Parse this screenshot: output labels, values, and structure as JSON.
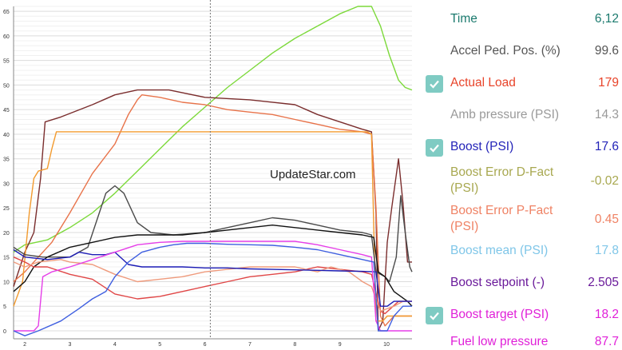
{
  "watermark": "UpdateStar.com",
  "chart_data": {
    "type": "line",
    "x_ticks": [
      2,
      3,
      4,
      5,
      6,
      7,
      8,
      9,
      10
    ],
    "y_ticks": [
      0,
      5,
      10,
      15,
      20,
      25,
      30,
      35,
      40,
      45,
      50,
      55,
      60,
      65
    ],
    "xlim": [
      1.75,
      10.6
    ],
    "ylim": [
      0,
      66
    ],
    "grid": true,
    "cursor_x": 6.12,
    "series": [
      {
        "color": "#7cd93a",
        "points": [
          [
            1.75,
            16
          ],
          [
            2,
            17.5
          ],
          [
            2.5,
            18.5
          ],
          [
            3,
            21
          ],
          [
            3.5,
            24
          ],
          [
            4,
            28
          ],
          [
            4.5,
            32.5
          ],
          [
            5,
            37
          ],
          [
            5.5,
            41.5
          ],
          [
            6,
            45.5
          ],
          [
            6.5,
            49.5
          ],
          [
            7,
            53
          ],
          [
            7.5,
            56.5
          ],
          [
            8,
            59.5
          ],
          [
            8.5,
            62
          ],
          [
            9,
            64.5
          ],
          [
            9.4,
            66
          ],
          [
            9.7,
            66
          ],
          [
            9.9,
            62
          ],
          [
            10.1,
            56
          ],
          [
            10.3,
            51
          ],
          [
            10.45,
            49.5
          ],
          [
            10.6,
            49
          ]
        ]
      },
      {
        "color": "#7a2d2d",
        "points": [
          [
            1.75,
            9
          ],
          [
            2,
            16
          ],
          [
            2.2,
            20
          ],
          [
            2.35,
            31
          ],
          [
            2.45,
            42.5
          ],
          [
            2.8,
            43.5
          ],
          [
            3.5,
            46
          ],
          [
            4,
            48
          ],
          [
            4.5,
            49
          ],
          [
            5.2,
            49
          ],
          [
            6,
            47.5
          ],
          [
            7,
            47
          ],
          [
            8,
            46
          ],
          [
            8.5,
            44
          ],
          [
            9,
            42.5
          ],
          [
            9.5,
            41
          ],
          [
            9.7,
            40.5
          ],
          [
            9.8,
            24
          ],
          [
            9.85,
            0
          ],
          [
            9.95,
            2
          ],
          [
            10.05,
            18
          ],
          [
            10.15,
            25
          ],
          [
            10.3,
            35
          ],
          [
            10.4,
            26
          ],
          [
            10.5,
            14
          ],
          [
            10.6,
            14
          ]
        ]
      },
      {
        "color": "#e8734a",
        "points": [
          [
            1.75,
            10
          ],
          [
            2,
            12
          ],
          [
            2.3,
            15
          ],
          [
            2.6,
            18
          ],
          [
            3,
            24
          ],
          [
            3.5,
            32
          ],
          [
            4,
            38
          ],
          [
            4.3,
            44
          ],
          [
            4.5,
            47
          ],
          [
            4.6,
            48
          ],
          [
            5,
            47.5
          ],
          [
            5.5,
            46.5
          ],
          [
            6,
            46
          ],
          [
            6.5,
            45
          ],
          [
            7,
            44.5
          ],
          [
            7.5,
            44
          ],
          [
            8,
            43
          ],
          [
            8.5,
            42
          ],
          [
            9,
            41
          ],
          [
            9.5,
            40.5
          ],
          [
            9.7,
            40
          ],
          [
            9.8,
            25
          ],
          [
            9.9,
            3
          ],
          [
            10,
            1
          ],
          [
            10.2,
            3
          ],
          [
            10.4,
            3
          ],
          [
            10.6,
            3
          ]
        ]
      },
      {
        "color": "#f29a2e",
        "points": [
          [
            1.75,
            5
          ],
          [
            1.95,
            10
          ],
          [
            2.1,
            24
          ],
          [
            2.2,
            31
          ],
          [
            2.3,
            32.5
          ],
          [
            2.5,
            33
          ],
          [
            2.6,
            37
          ],
          [
            2.7,
            40.5
          ],
          [
            3,
            40.5
          ],
          [
            4,
            40.5
          ],
          [
            5,
            40.5
          ],
          [
            6,
            40.5
          ],
          [
            7,
            40.5
          ],
          [
            8,
            40.5
          ],
          [
            9,
            40.5
          ],
          [
            9.6,
            40.5
          ],
          [
            9.7,
            40
          ],
          [
            9.8,
            2
          ],
          [
            9.95,
            2
          ],
          [
            10.05,
            3
          ],
          [
            10.3,
            3
          ],
          [
            10.6,
            3
          ]
        ]
      },
      {
        "color": "#4a4a4a",
        "points": [
          [
            1.75,
            17
          ],
          [
            2,
            15.5
          ],
          [
            2.4,
            15
          ],
          [
            3,
            15
          ],
          [
            3.4,
            17
          ],
          [
            3.8,
            28
          ],
          [
            4,
            29.5
          ],
          [
            4.2,
            28
          ],
          [
            4.5,
            22
          ],
          [
            4.8,
            20
          ],
          [
            5.3,
            19.5
          ],
          [
            6,
            20
          ],
          [
            6.5,
            21
          ],
          [
            7,
            22
          ],
          [
            7.5,
            23
          ],
          [
            8,
            22.5
          ],
          [
            8.5,
            21.5
          ],
          [
            9,
            20.5
          ],
          [
            9.5,
            20
          ],
          [
            9.7,
            19.5
          ],
          [
            9.8,
            12
          ],
          [
            10,
            11
          ],
          [
            10.1,
            10
          ],
          [
            10.25,
            15
          ],
          [
            10.35,
            27.5
          ],
          [
            10.45,
            20
          ],
          [
            10.55,
            13
          ],
          [
            10.6,
            12
          ]
        ]
      },
      {
        "color": "#111111",
        "points": [
          [
            1.75,
            8
          ],
          [
            2,
            10
          ],
          [
            2.2,
            13
          ],
          [
            2.5,
            15
          ],
          [
            3,
            17
          ],
          [
            3.5,
            18
          ],
          [
            4,
            19
          ],
          [
            4.5,
            19.5
          ],
          [
            5,
            19.5
          ],
          [
            5.5,
            19.5
          ],
          [
            6,
            20
          ],
          [
            6.5,
            20.5
          ],
          [
            7,
            21
          ],
          [
            7.5,
            21.5
          ],
          [
            8,
            21
          ],
          [
            8.5,
            20.5
          ],
          [
            9,
            20
          ],
          [
            9.5,
            19.5
          ],
          [
            9.75,
            19
          ],
          [
            9.85,
            12
          ],
          [
            10,
            11
          ],
          [
            10.2,
            8
          ],
          [
            10.35,
            7
          ],
          [
            10.5,
            6
          ],
          [
            10.6,
            5
          ]
        ]
      },
      {
        "color": "#e04646",
        "points": [
          [
            1.75,
            15
          ],
          [
            2,
            14
          ],
          [
            2.2,
            13
          ],
          [
            2.5,
            13
          ],
          [
            3,
            11.5
          ],
          [
            3.5,
            10.5
          ],
          [
            4,
            7.5
          ],
          [
            4.5,
            6.5
          ],
          [
            5,
            7
          ],
          [
            5.5,
            8
          ],
          [
            6,
            9
          ],
          [
            6.5,
            10
          ],
          [
            7,
            11
          ],
          [
            7.5,
            11.5
          ],
          [
            8,
            12
          ],
          [
            8.5,
            13
          ],
          [
            9,
            12.5
          ],
          [
            9.5,
            12
          ],
          [
            9.7,
            11.5
          ],
          [
            9.9,
            4
          ],
          [
            10,
            3.5
          ],
          [
            10.3,
            6
          ],
          [
            10.5,
            6
          ],
          [
            10.6,
            6
          ]
        ]
      },
      {
        "color": "#ef9a7c",
        "points": [
          [
            1.75,
            14
          ],
          [
            2,
            13
          ],
          [
            2.3,
            14
          ],
          [
            2.8,
            14.5
          ],
          [
            3,
            14
          ],
          [
            3.5,
            13.5
          ],
          [
            4,
            11.5
          ],
          [
            4.5,
            10
          ],
          [
            5,
            10.5
          ],
          [
            5.5,
            11
          ],
          [
            6,
            12
          ],
          [
            6.5,
            12.5
          ],
          [
            7,
            13
          ],
          [
            7.5,
            13
          ],
          [
            8,
            13
          ],
          [
            8.5,
            12
          ],
          [
            8.8,
            13
          ],
          [
            9.2,
            12
          ],
          [
            9.5,
            10
          ],
          [
            9.7,
            9
          ],
          [
            9.9,
            4
          ],
          [
            10.2,
            5
          ],
          [
            10.4,
            6
          ],
          [
            10.6,
            6
          ]
        ]
      },
      {
        "color": "#1c1cb5",
        "points": [
          [
            1.75,
            16.5
          ],
          [
            2,
            15
          ],
          [
            2.5,
            14.5
          ],
          [
            3,
            15
          ],
          [
            3.2,
            16
          ],
          [
            3.5,
            15.5
          ],
          [
            3.8,
            15.5
          ],
          [
            4,
            16
          ],
          [
            4.3,
            13.5
          ],
          [
            4.6,
            13
          ],
          [
            5,
            13
          ],
          [
            5.5,
            13
          ],
          [
            6,
            12.8
          ],
          [
            6.5,
            12.8
          ],
          [
            7,
            12.6
          ],
          [
            7.5,
            12.5
          ],
          [
            8,
            12.4
          ],
          [
            8.5,
            12.3
          ],
          [
            9,
            12.2
          ],
          [
            9.5,
            12.1
          ],
          [
            9.8,
            12
          ],
          [
            9.9,
            5
          ],
          [
            10.05,
            5
          ],
          [
            10.2,
            6
          ],
          [
            10.4,
            6
          ],
          [
            10.6,
            6
          ]
        ]
      },
      {
        "color": "#e53ee8",
        "points": [
          [
            1.75,
            0
          ],
          [
            2.2,
            0
          ],
          [
            2.3,
            1
          ],
          [
            2.4,
            11
          ],
          [
            2.6,
            12
          ],
          [
            3,
            13
          ],
          [
            3.5,
            14.5
          ],
          [
            4,
            16
          ],
          [
            4.5,
            17.5
          ],
          [
            5,
            18
          ],
          [
            5.5,
            18.2
          ],
          [
            6,
            18.2
          ],
          [
            7,
            18.2
          ],
          [
            8,
            18.2
          ],
          [
            8.5,
            17.5
          ],
          [
            9,
            16.5
          ],
          [
            9.5,
            15.5
          ],
          [
            9.7,
            15
          ],
          [
            9.8,
            2
          ],
          [
            9.9,
            0
          ],
          [
            10.2,
            0
          ],
          [
            10.6,
            0
          ]
        ]
      },
      {
        "color": "#3f5fe0",
        "points": [
          [
            1.75,
            0
          ],
          [
            2,
            -1
          ],
          [
            2.3,
            0
          ],
          [
            2.8,
            2
          ],
          [
            3.2,
            4.5
          ],
          [
            3.5,
            6.5
          ],
          [
            3.8,
            8
          ],
          [
            4,
            11
          ],
          [
            4.3,
            14
          ],
          [
            4.6,
            16
          ],
          [
            5,
            17
          ],
          [
            5.3,
            17.5
          ],
          [
            5.6,
            17.8
          ],
          [
            6,
            17.8
          ],
          [
            6.5,
            17.6
          ],
          [
            7,
            17.5
          ],
          [
            7.5,
            17.4
          ],
          [
            8,
            17
          ],
          [
            8.5,
            16.5
          ],
          [
            9,
            15.5
          ],
          [
            9.5,
            14.5
          ],
          [
            9.75,
            14
          ],
          [
            9.85,
            0
          ],
          [
            10.05,
            0
          ],
          [
            10.2,
            3
          ],
          [
            10.4,
            5
          ],
          [
            10.6,
            5
          ]
        ]
      }
    ]
  },
  "params": [
    {
      "name": "Time",
      "value": "6,12",
      "color": "#1b7a6e",
      "checked": false,
      "lines": 1
    },
    {
      "name": "Accel Ped. Pos. (%)",
      "value": "99.6",
      "color": "#555555",
      "checked": false,
      "lines": 1
    },
    {
      "name": "Actual Load",
      "value": "179",
      "color": "#e8442a",
      "checked": true,
      "lines": 1
    },
    {
      "name": "Amb pressure (PSI)",
      "value": "14.3",
      "color": "#9a9a9a",
      "checked": false,
      "lines": 1
    },
    {
      "name": "Boost (PSI)",
      "value": "17.6",
      "color": "#2323b8",
      "checked": true,
      "lines": 1
    },
    {
      "name": "Boost Error D-Fact (PSI)",
      "value": "-0.02",
      "color": "#a8a850",
      "checked": false,
      "lines": 2
    },
    {
      "name": "Boost Error P-Fact (PSI)",
      "value": "0.45",
      "color": "#ef8264",
      "checked": false,
      "lines": 2
    },
    {
      "name": "Boost mean (PSI)",
      "value": "17.8",
      "color": "#7fc6e8",
      "checked": false,
      "lines": 1
    },
    {
      "name": "Boost setpoint (-)",
      "value": "2.505",
      "color": "#6a1a9a",
      "checked": false,
      "lines": 1
    },
    {
      "name": "Boost target (PSI)",
      "value": "18.2",
      "color": "#e020d8",
      "checked": true,
      "lines": 1
    },
    {
      "name": "Fuel low pressure",
      "value": "87.7",
      "color": "#e020d8",
      "checked": false,
      "lines": 1
    }
  ],
  "check_icon": "checkmark-icon"
}
